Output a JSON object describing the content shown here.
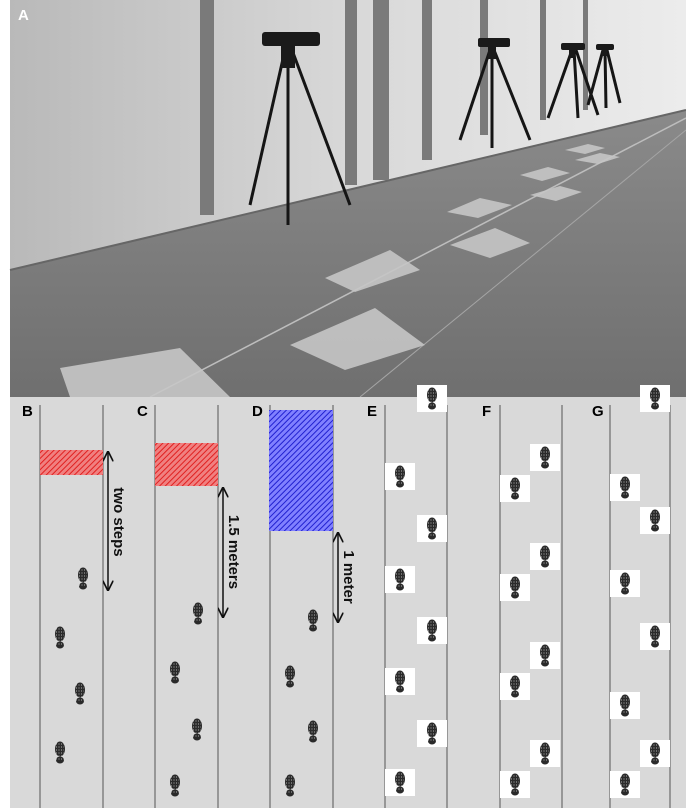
{
  "panels": [
    {
      "label": "A"
    },
    {
      "label": "B",
      "annotation": "two steps"
    },
    {
      "label": "C",
      "annotation": "1.5 meters"
    },
    {
      "label": "D",
      "annotation": "1 meter"
    },
    {
      "label": "E"
    },
    {
      "label": "F"
    },
    {
      "label": "G"
    }
  ]
}
